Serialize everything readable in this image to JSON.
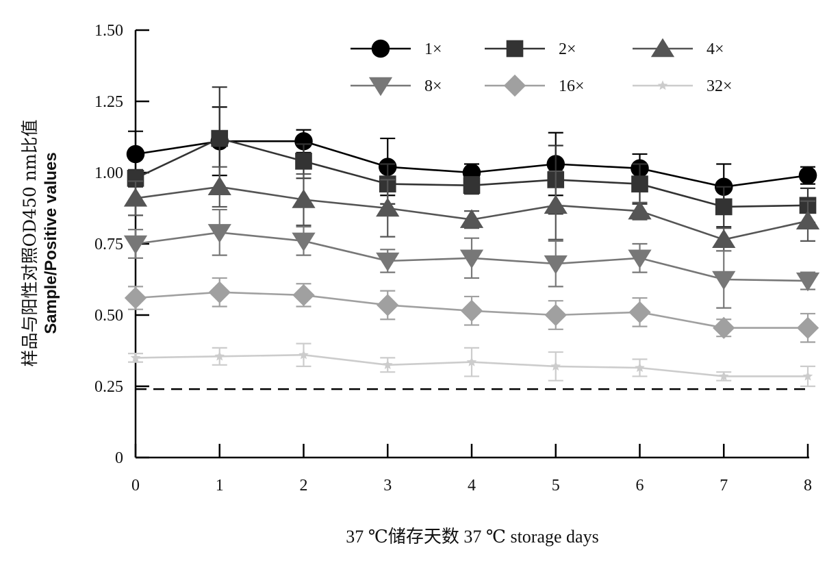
{
  "chart_data": {
    "type": "line",
    "x": [
      0,
      1,
      2,
      3,
      4,
      5,
      6,
      7,
      8
    ],
    "xlabel": "37 ℃储存天数 37 ℃ storage days",
    "ylabel_cn": "样品与阳性对照OD450 nm比值",
    "ylabel_en": "Sample/Positive values",
    "ylim": [
      0,
      1.5
    ],
    "yticks": [
      {
        "value": 0,
        "label": "0"
      },
      {
        "value": 0.25,
        "label": "0.25"
      },
      {
        "value": 0.5,
        "label": "0.50"
      },
      {
        "value": 0.75,
        "label": "0.75"
      },
      {
        "value": 1.0,
        "label": "1.00"
      },
      {
        "value": 1.25,
        "label": "1.25"
      },
      {
        "value": 1.5,
        "label": "1.50"
      }
    ],
    "xticks": [
      "0",
      "1",
      "2",
      "3",
      "4",
      "5",
      "6",
      "7",
      "8"
    ],
    "cutoff": 0.24,
    "legend_position": "top",
    "series": [
      {
        "name": "1×",
        "marker": "circle",
        "color": "#000000",
        "values": [
          1.065,
          1.11,
          1.11,
          1.02,
          1.0,
          1.03,
          1.015,
          0.95,
          0.99
        ],
        "errors": [
          0.08,
          0.12,
          0.04,
          0.1,
          0.03,
          0.11,
          0.05,
          0.08,
          0.03
        ]
      },
      {
        "name": "2×",
        "marker": "square",
        "color": "#333333",
        "values": [
          0.98,
          1.12,
          1.04,
          0.96,
          0.955,
          0.975,
          0.96,
          0.88,
          0.885
        ],
        "errors": [
          0.03,
          0.18,
          0.06,
          0.07,
          0.03,
          0.12,
          0.07,
          0.07,
          0.06
        ]
      },
      {
        "name": "4×",
        "marker": "triangle-up",
        "color": "#555555",
        "values": [
          0.91,
          0.95,
          0.905,
          0.875,
          0.835,
          0.885,
          0.865,
          0.765,
          0.83
        ],
        "errors": [
          0.06,
          0.07,
          0.09,
          0.1,
          0.03,
          0.12,
          0.03,
          0.04,
          0.07
        ]
      },
      {
        "name": "8×",
        "marker": "triangle-down",
        "color": "#777777",
        "values": [
          0.75,
          0.79,
          0.76,
          0.69,
          0.7,
          0.68,
          0.7,
          0.625,
          0.62
        ],
        "errors": [
          0.05,
          0.08,
          0.05,
          0.04,
          0.07,
          0.08,
          0.05,
          0.1,
          0.03
        ]
      },
      {
        "name": "16×",
        "marker": "diamond",
        "color": "#a0a0a0",
        "values": [
          0.56,
          0.58,
          0.57,
          0.535,
          0.515,
          0.5,
          0.51,
          0.455,
          0.455
        ],
        "errors": [
          0.04,
          0.05,
          0.04,
          0.05,
          0.05,
          0.05,
          0.05,
          0.03,
          0.05
        ]
      },
      {
        "name": "32×",
        "marker": "star",
        "color": "#cccccc",
        "values": [
          0.35,
          0.355,
          0.36,
          0.325,
          0.335,
          0.32,
          0.315,
          0.285,
          0.285
        ],
        "errors": [
          0.015,
          0.03,
          0.04,
          0.025,
          0.05,
          0.05,
          0.03,
          0.015,
          0.035
        ]
      }
    ]
  }
}
